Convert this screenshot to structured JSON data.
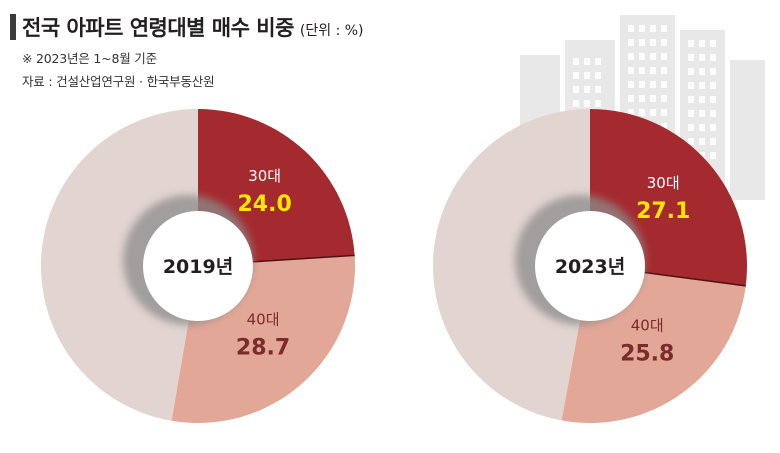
{
  "header": {
    "title": "전국 아파트 연령대별 매수 비중",
    "unit": "(단위 : %)",
    "note": "※ 2023년은 1~8월 기준",
    "source": "자료 : 건설산업연구원 · 한국부동산원"
  },
  "chart_data": [
    {
      "type": "pie",
      "title": "2019년",
      "slices": [
        {
          "label": "30대",
          "value": 24.0,
          "display": "24.0",
          "color": "#a52a2f",
          "value_color": "#ffe600"
        },
        {
          "label": "40대",
          "value": 28.7,
          "display": "28.7",
          "color": "#e3a797",
          "value_color": "#7a2b2b"
        },
        {
          "label": "",
          "value": 47.3,
          "color": "#e2d4d1"
        }
      ]
    },
    {
      "type": "pie",
      "title": "2023년",
      "slices": [
        {
          "label": "30대",
          "value": 27.1,
          "display": "27.1",
          "color": "#a52a2f",
          "value_color": "#ffe600"
        },
        {
          "label": "40대",
          "value": 25.8,
          "display": "25.8",
          "color": "#e3a797",
          "value_color": "#7a2b2b"
        },
        {
          "label": "",
          "value": 47.1,
          "color": "#e2d4d1"
        }
      ]
    }
  ]
}
